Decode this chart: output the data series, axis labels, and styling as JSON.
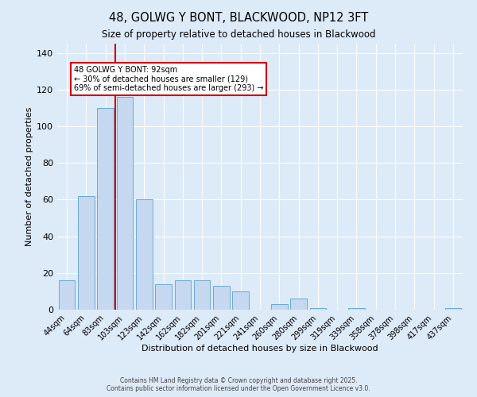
{
  "title": "48, GOLWG Y BONT, BLACKWOOD, NP12 3FT",
  "subtitle": "Size of property relative to detached houses in Blackwood",
  "xlabel": "Distribution of detached houses by size in Blackwood",
  "ylabel": "Number of detached properties",
  "categories": [
    "44sqm",
    "64sqm",
    "83sqm",
    "103sqm",
    "123sqm",
    "142sqm",
    "162sqm",
    "182sqm",
    "201sqm",
    "221sqm",
    "241sqm",
    "260sqm",
    "280sqm",
    "299sqm",
    "319sqm",
    "339sqm",
    "358sqm",
    "378sqm",
    "398sqm",
    "417sqm",
    "437sqm"
  ],
  "values": [
    16,
    62,
    110,
    116,
    60,
    14,
    16,
    16,
    13,
    10,
    0,
    3,
    6,
    1,
    0,
    1,
    0,
    0,
    0,
    0,
    1
  ],
  "bar_color": "#c5d8f0",
  "bar_edge_color": "#6aaad4",
  "vline_x_bar_index": 2,
  "vline_color": "#cc0000",
  "annotation_title": "48 GOLWG Y BONT: 92sqm",
  "annotation_line1": "← 30% of detached houses are smaller (129)",
  "annotation_line2": "69% of semi-detached houses are larger (293) →",
  "annotation_box_color": "#ffffff",
  "annotation_box_edge": "#cc0000",
  "ylim": [
    0,
    145
  ],
  "yticks": [
    0,
    20,
    40,
    60,
    80,
    100,
    120,
    140
  ],
  "footer1": "Contains HM Land Registry data © Crown copyright and database right 2025.",
  "footer2": "Contains public sector information licensed under the Open Government Licence v3.0.",
  "background_color": "#ddeaf8",
  "plot_bg_color": "#ddeaf8"
}
